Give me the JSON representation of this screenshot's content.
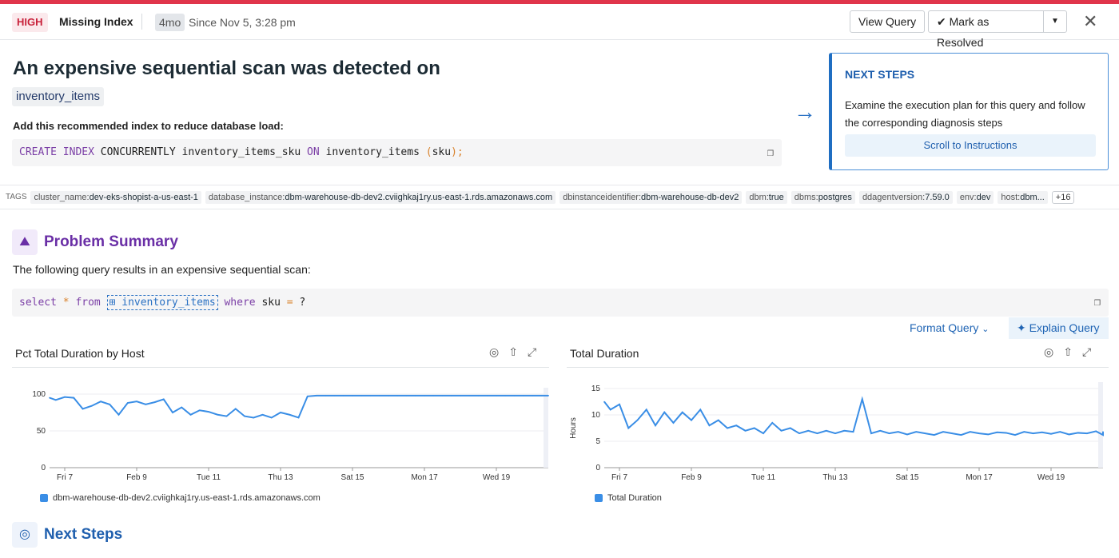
{
  "header": {
    "severity": "HIGH",
    "category": "Missing Index",
    "age": "4mo",
    "since": "Since Nov 5, 3:28 pm",
    "view_query": "View Query",
    "mark_resolved": "Mark as Resolved",
    "close_icon": "close-icon"
  },
  "colors": {
    "severity": "#e0354b",
    "accent": "#1f6ec2",
    "series": "#3a8ee6",
    "section": "#6a2fa6"
  },
  "main": {
    "title": "An expensive sequential scan was detected on",
    "table": "inventory_items",
    "recommend": "Add this recommended index to reduce database load:",
    "index_sql": {
      "k1": "CREATE INDEX",
      "t1": " CONCURRENTLY inventory_items_sku ",
      "k2": "ON",
      "t2": " inventory_items ",
      "p1": "(",
      "t3": "sku",
      "p2": ");"
    }
  },
  "next_steps_card": {
    "heading": "NEXT STEPS",
    "text": "Examine the execution plan for this query and follow the corresponding diagnosis steps",
    "button": "Scroll to Instructions"
  },
  "tags": {
    "label": "TAGS",
    "items": [
      {
        "key": "cluster_name:",
        "value": "dev-eks-shopist-a-us-east-1"
      },
      {
        "key": "database_instance:",
        "value": "dbm-warehouse-db-dev2.cviighkaj1ry.us-east-1.rds.amazonaws.com"
      },
      {
        "key": "dbinstanceidentifier:",
        "value": "dbm-warehouse-db-dev2"
      },
      {
        "key": "dbm:",
        "value": "true"
      },
      {
        "key": "dbms:",
        "value": "postgres"
      },
      {
        "key": "ddagentversion:",
        "value": "7.59.0"
      },
      {
        "key": "env:",
        "value": "dev"
      },
      {
        "key": "host:",
        "value": "dbm..."
      }
    ],
    "more": "+16"
  },
  "problem": {
    "heading": "Problem Summary",
    "desc": "The following query results in an expensive sequential scan:",
    "query": {
      "k1": "select",
      "op1": "*",
      "k2": "from",
      "table": "inventory_items",
      "k3": "where",
      "col": "sku",
      "op2": "=",
      "param": "?"
    },
    "format": "Format Query",
    "explain": "Explain Query"
  },
  "next_heading": "Next Steps",
  "chart_data": [
    {
      "type": "line",
      "title": "Pct Total Duration by Host",
      "ylabel": "",
      "ylim": [
        0,
        100
      ],
      "yticks": [
        "0",
        "50",
        "100"
      ],
      "xticks": [
        "Fri 7",
        "Feb 9",
        "Tue 11",
        "Thu 13",
        "Sat 15",
        "Mon 17",
        "Wed 19"
      ],
      "grid": true,
      "legend": "bottom-left",
      "series": [
        {
          "name": "dbm-warehouse-db-dev2.cviighkaj1ry.us-east-1.rds.amazonaws.com",
          "x": [
            "Feb 6 12:00",
            "Feb 6 18:00",
            "Feb 7 00:00",
            "Feb 7 06:00",
            "Feb 7 12:00",
            "Feb 7 18:00",
            "Feb 8 00:00",
            "Feb 8 06:00",
            "Feb 8 12:00",
            "Feb 8 18:00",
            "Feb 9 00:00",
            "Feb 9 06:00",
            "Feb 9 12:00",
            "Feb 9 18:00",
            "Feb 10 00:00",
            "Feb 10 06:00",
            "Feb 10 12:00",
            "Feb 10 18:00",
            "Feb 11 00:00",
            "Feb 11 06:00",
            "Feb 11 12:00",
            "Feb 11 18:00",
            "Feb 12 00:00",
            "Feb 12 06:00",
            "Feb 12 12:00",
            "Feb 12 18:00",
            "Feb 13 00:00",
            "Feb 13 06:00",
            "Feb 13 12:00",
            "Feb 13 18:00",
            "Feb 14 00:00",
            "Feb 14 06:00",
            "Feb 14 12:00",
            "Feb 14 18:00",
            "Feb 15 00:00",
            "Feb 15 06:00",
            "Feb 15 12:00",
            "Feb 15 18:00",
            "Feb 16 00:00",
            "Feb 16 06:00",
            "Feb 16 12:00",
            "Feb 16 18:00",
            "Feb 17 00:00",
            "Feb 17 06:00",
            "Feb 17 12:00",
            "Feb 17 18:00",
            "Feb 18 00:00",
            "Feb 18 06:00",
            "Feb 18 12:00",
            "Feb 18 18:00",
            "Feb 19 00:00",
            "Feb 19 06:00",
            "Feb 19 12:00",
            "Feb 19 18:00",
            "Feb 20 00:00",
            "Feb 20 06:00",
            "Feb 20 12:00",
            "Feb 20 18:00"
          ],
          "y": [
            95,
            92,
            96,
            95,
            80,
            84,
            90,
            86,
            72,
            88,
            90,
            86,
            89,
            93,
            75,
            82,
            72,
            78,
            76,
            72,
            70,
            80,
            70,
            68,
            72,
            68,
            75,
            72,
            68,
            97,
            98,
            98,
            98,
            98,
            98,
            98,
            98,
            98,
            98,
            98,
            98,
            98,
            98,
            98,
            98,
            98,
            98,
            98,
            98,
            98,
            98,
            98,
            98,
            98,
            98,
            98,
            98,
            98
          ]
        }
      ]
    },
    {
      "type": "line",
      "title": "Total Duration",
      "ylabel": "Hours",
      "ylim": [
        0,
        15
      ],
      "yticks": [
        "0",
        "5",
        "10",
        "15"
      ],
      "xticks": [
        "Fri 7",
        "Feb 9",
        "Tue 11",
        "Thu 13",
        "Sat 15",
        "Mon 17",
        "Wed 19"
      ],
      "grid": true,
      "legend": "bottom-left",
      "series": [
        {
          "name": "Total Duration",
          "x": [
            "Feb 6 12:00",
            "Feb 6 18:00",
            "Feb 7 00:00",
            "Feb 7 06:00",
            "Feb 7 12:00",
            "Feb 7 18:00",
            "Feb 8 00:00",
            "Feb 8 06:00",
            "Feb 8 12:00",
            "Feb 8 18:00",
            "Feb 9 00:00",
            "Feb 9 06:00",
            "Feb 9 12:00",
            "Feb 9 18:00",
            "Feb 10 00:00",
            "Feb 10 06:00",
            "Feb 10 12:00",
            "Feb 10 18:00",
            "Feb 11 00:00",
            "Feb 11 06:00",
            "Feb 11 12:00",
            "Feb 11 18:00",
            "Feb 12 00:00",
            "Feb 12 06:00",
            "Feb 12 12:00",
            "Feb 12 18:00",
            "Feb 13 00:00",
            "Feb 13 06:00",
            "Feb 13 12:00",
            "Feb 13 18:00",
            "Feb 14 00:00",
            "Feb 14 06:00",
            "Feb 14 12:00",
            "Feb 14 18:00",
            "Feb 15 00:00",
            "Feb 15 06:00",
            "Feb 15 12:00",
            "Feb 15 18:00",
            "Feb 16 00:00",
            "Feb 16 06:00",
            "Feb 16 12:00",
            "Feb 16 18:00",
            "Feb 17 00:00",
            "Feb 17 06:00",
            "Feb 17 12:00",
            "Feb 17 18:00",
            "Feb 18 00:00",
            "Feb 18 06:00",
            "Feb 18 12:00",
            "Feb 18 18:00",
            "Feb 19 00:00",
            "Feb 19 06:00",
            "Feb 19 12:00",
            "Feb 19 18:00",
            "Feb 20 00:00",
            "Feb 20 06:00",
            "Feb 20 12:00",
            "Feb 20 18:00"
          ],
          "y": [
            12.5,
            11,
            12,
            7.5,
            9,
            11,
            8,
            10.5,
            8.5,
            10.5,
            9,
            11,
            8,
            9,
            7.5,
            8,
            7,
            7.5,
            6.5,
            8.5,
            7,
            7.5,
            6.5,
            7,
            6.5,
            7,
            6.5,
            7,
            6.8,
            13,
            6.5,
            7,
            6.5,
            6.8,
            6.3,
            6.8,
            6.5,
            6.2,
            6.8,
            6.5,
            6.2,
            6.8,
            6.5,
            6.3,
            6.7,
            6.6,
            6.2,
            6.8,
            6.5,
            6.7,
            6.4,
            6.8,
            6.3,
            6.6,
            6.5,
            6.9,
            6.2,
            6.8
          ]
        }
      ]
    }
  ]
}
